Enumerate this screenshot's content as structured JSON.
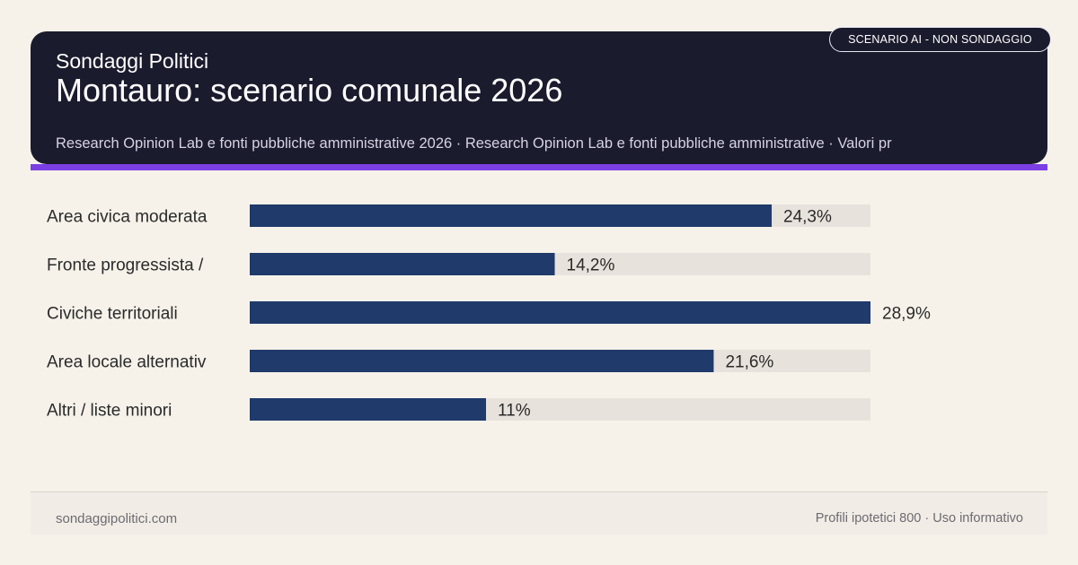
{
  "header": {
    "brand": "Sondaggi Politici",
    "title": "Montauro: scenario comunale 2026",
    "source": "Research Opinion Lab e fonti pubbliche amministrative 2026 · Research Opinion Lab e fonti pubbliche amministrative · Valori pr",
    "badge": "SCENARIO AI - NON SONDAGGIO"
  },
  "colors": {
    "background": "#f6f2ea",
    "header_bg": "#1b1b2e",
    "accent": "#7b3fe4",
    "bar": "#1f3a6b",
    "track": "#e8e2dc",
    "label_text": "#2a2a2a"
  },
  "chart_data": {
    "type": "bar",
    "orientation": "horizontal",
    "categories": [
      "Area civica moderata",
      "Fronte progressista /",
      "Civiche territoriali",
      "Area locale alternativ",
      "Altri / liste minori"
    ],
    "values": [
      24.3,
      14.2,
      28.9,
      21.6,
      11
    ],
    "value_labels": [
      "24,3%",
      "14,2%",
      "28,9%",
      "21,6%",
      "11%"
    ],
    "xlim": [
      0,
      28.9
    ],
    "unit": "%",
    "grid": false
  },
  "footer": {
    "site": "sondaggipolitici.com",
    "note": "Profili ipotetici 800 · Uso informativo"
  }
}
